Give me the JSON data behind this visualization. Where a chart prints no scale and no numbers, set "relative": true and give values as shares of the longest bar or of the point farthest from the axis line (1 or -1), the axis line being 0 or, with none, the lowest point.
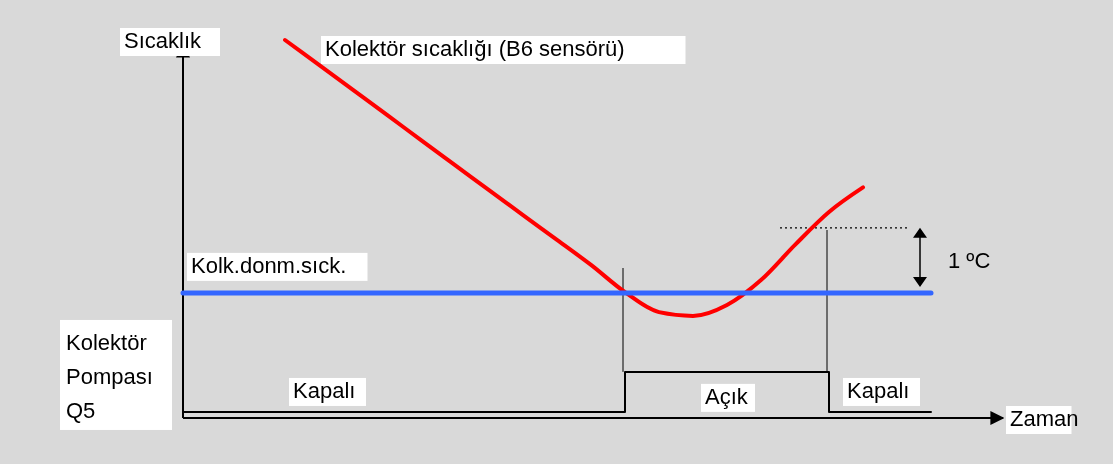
{
  "chart_data": {
    "type": "line",
    "relative": true,
    "ylabel": "Sıcaklık",
    "xlabel": "Zaman",
    "categories": [
      null,
      null,
      null,
      null,
      null,
      null,
      null,
      null,
      null,
      null,
      null,
      null,
      null,
      null,
      null,
      null,
      null,
      null,
      null,
      null,
      null,
      null,
      null
    ],
    "series": [
      {
        "name": "Kolektör sıcaklığı (B6 sensörü)",
        "color": "#ff0000",
        "values": [
          null,
          null,
          null,
          1.0,
          0.934,
          0.868,
          0.802,
          0.735,
          0.669,
          0.603,
          0.537,
          0.471,
          0.405,
          0.333,
          0.28,
          0.27,
          0.299,
          0.365,
          0.458,
          0.545,
          0.61,
          null,
          null
        ]
      },
      {
        "name": "Kolk.donm.sıck.",
        "color": "#3366ff",
        "values": [
          0.331,
          0.331,
          0.331,
          0.331,
          0.331,
          0.331,
          0.331,
          0.331,
          0.331,
          0.331,
          0.331,
          0.331,
          0.331,
          0.331,
          0.331,
          0.331,
          0.331,
          0.331,
          0.331,
          0.331,
          0.331,
          0.331,
          0.331
        ]
      },
      {
        "name": "Kolektör Pompası Q5",
        "type": "step",
        "color": "#000000",
        "values": [
          0.016,
          0.016,
          0.016,
          0.016,
          0.016,
          0.016,
          0.016,
          0.016,
          0.016,
          0.016,
          0.016,
          0.016,
          0.016,
          0.122,
          0.122,
          0.122,
          0.122,
          0.122,
          0.122,
          0.016,
          0.016,
          0.016,
          0.016
        ]
      }
    ],
    "ref_lines": [
      {
        "axis": "y",
        "value": 0.503,
        "label": "1 ºC",
        "line_style": "dotted",
        "color": "#000000"
      }
    ],
    "annotations": [
      "Kapalı",
      "Açık",
      "Kapalı"
    ]
  }
}
